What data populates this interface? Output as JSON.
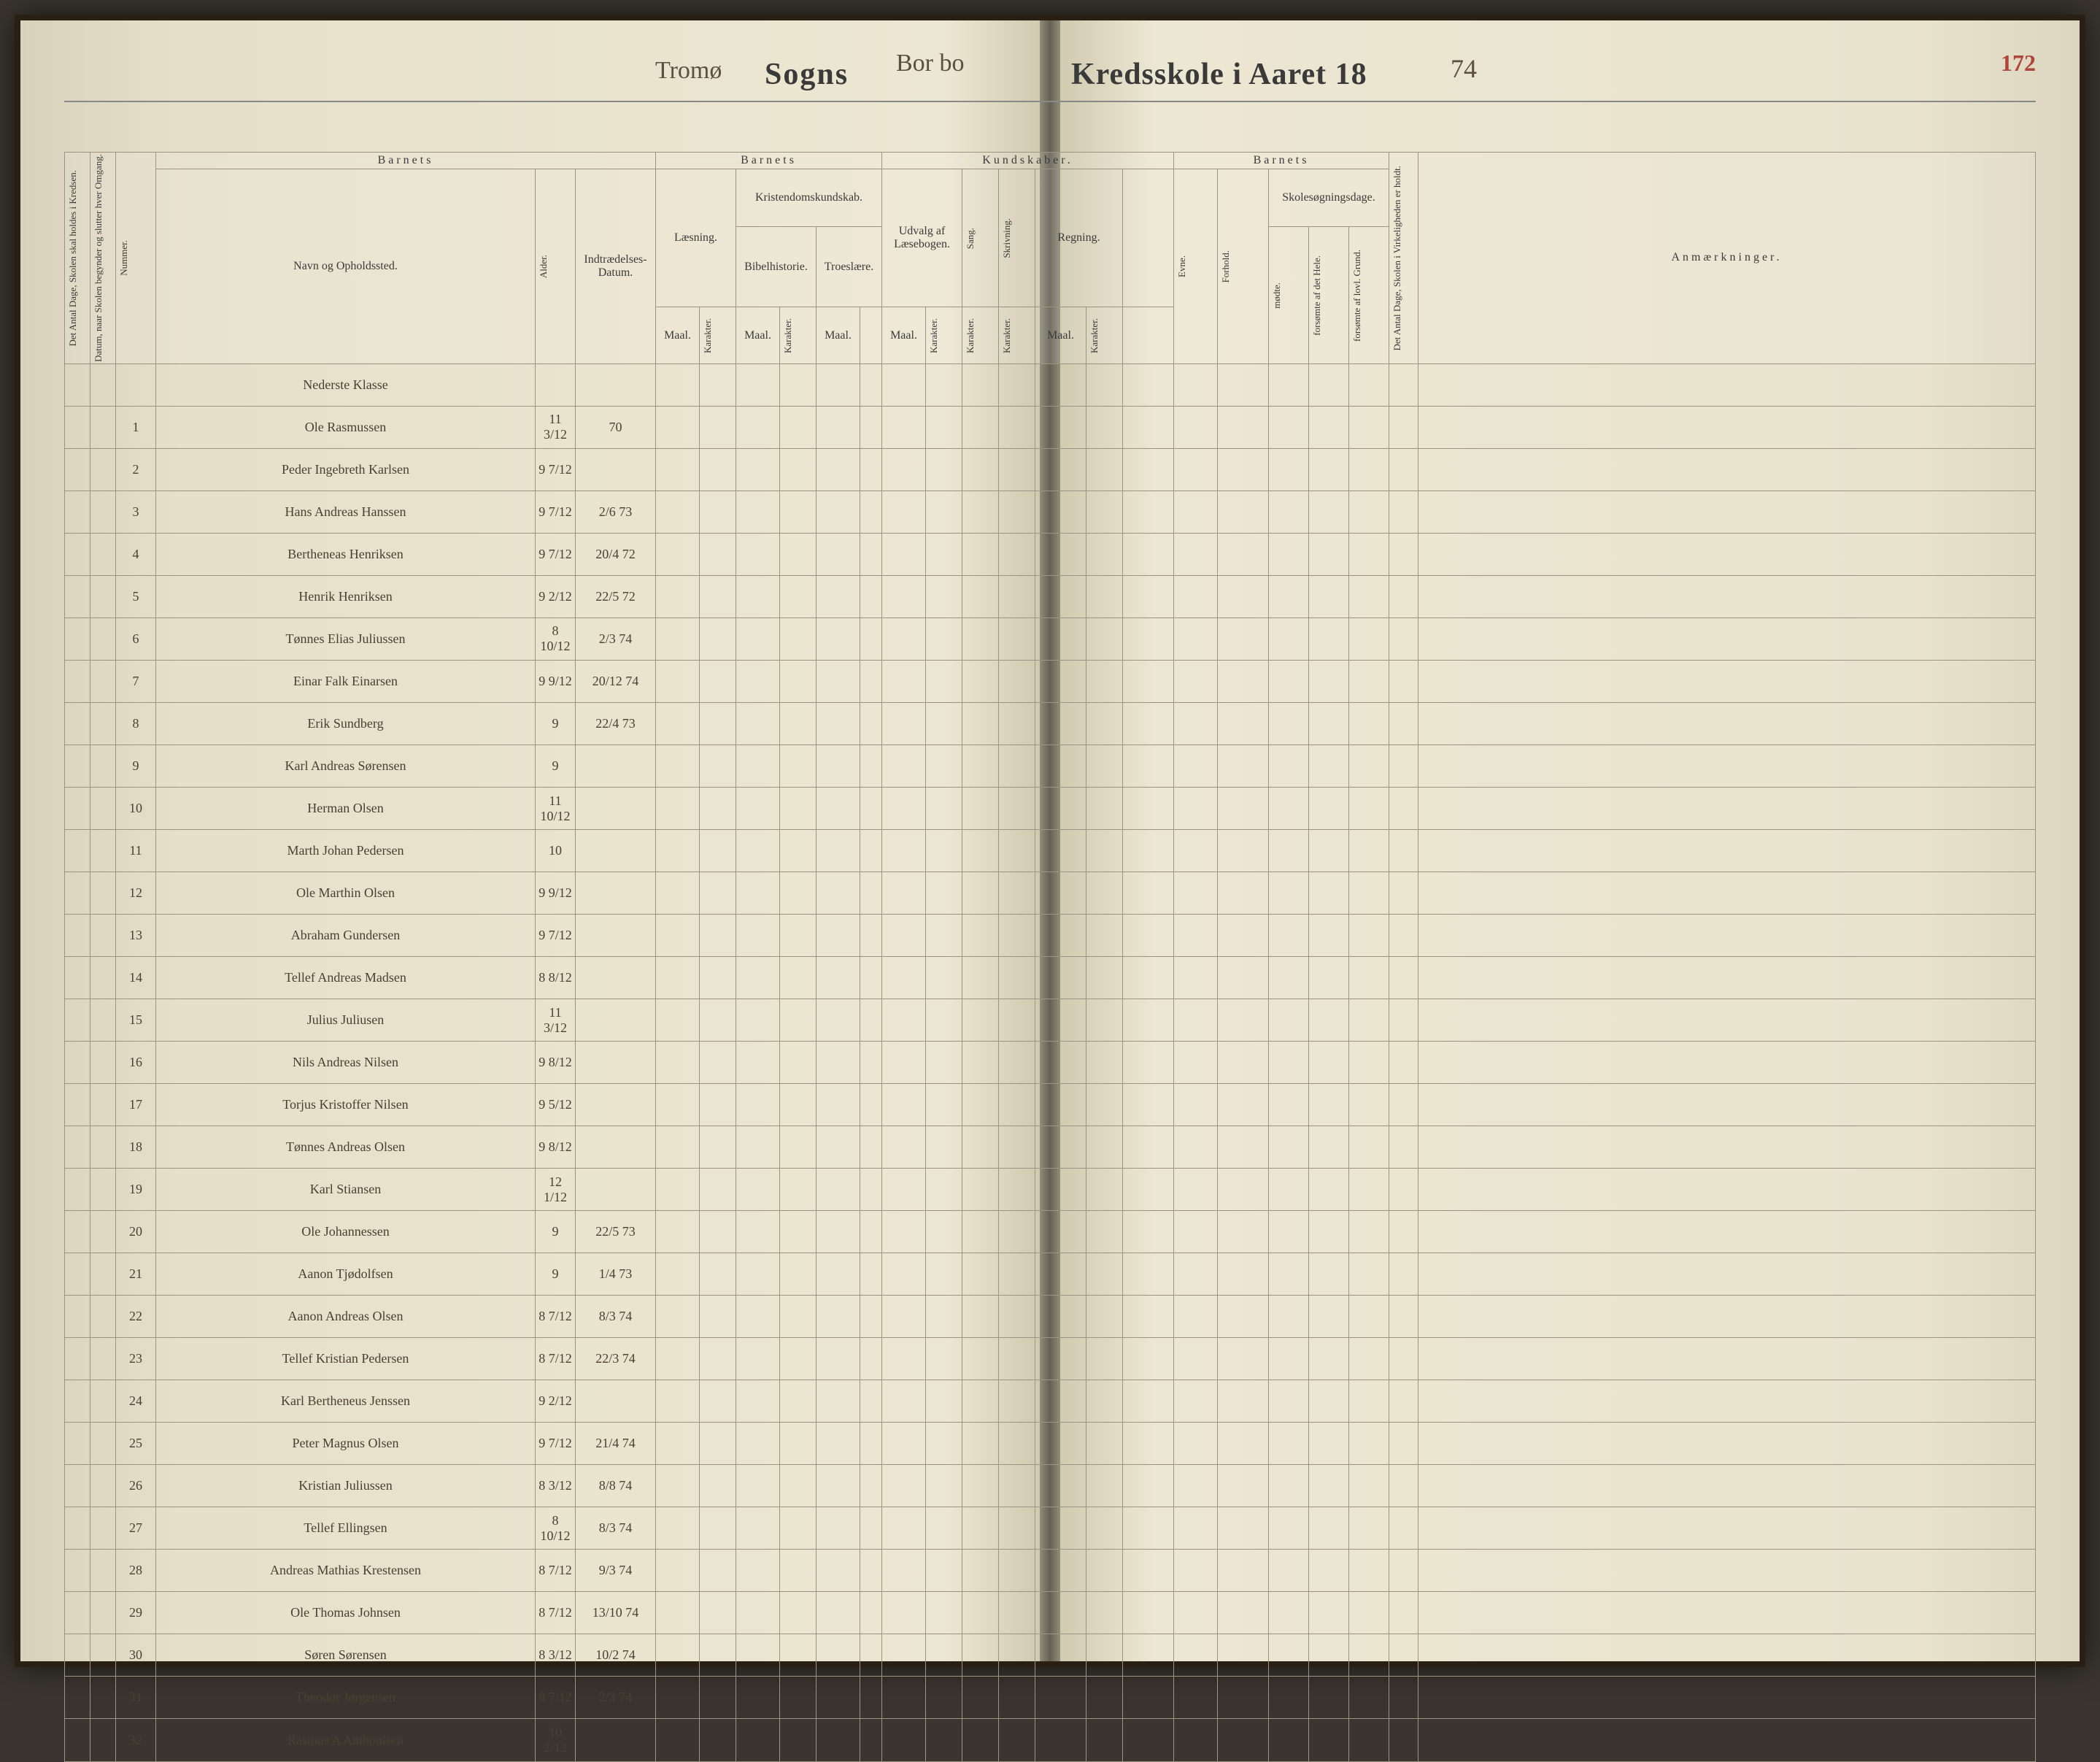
{
  "header": {
    "parish_script": "Tromø",
    "sogns": "Sogns",
    "district_script": "Bor bo",
    "kredsskole": "Kredsskole i Aaret 18",
    "year_suffix": "74",
    "page_number": "172"
  },
  "columns": {
    "c1": "Det Antal Dage, Skolen skal holdes i Kredsen.",
    "c2": "Datum, naar Skolen begynder og slutter hver Omgang.",
    "c3": "Nummer.",
    "barnets1": "Barnets",
    "navn": "Navn og Opholdssted.",
    "alder": "Alder.",
    "indtr": "Indtrædelses-Datum.",
    "barnets2": "Barnets",
    "laesning": "Læsning.",
    "kristendom": "Kristendomskundskab.",
    "bibel": "Bibelhistorie.",
    "troes": "Troeslære.",
    "maal": "Maal.",
    "karakter": "Karakter.",
    "kundskaber": "Kundskaber.",
    "udvalg": "Udvalg af Læsebogen.",
    "sang": "Sang.",
    "skriv": "Skrivning.",
    "regning": "Regning.",
    "barnets3": "Barnets",
    "evne": "Evne.",
    "forhold": "Forhold.",
    "skolesog": "Skolesøgningsdage.",
    "modte": "mødte.",
    "fors1": "forsømte af det Hele.",
    "fors2": "forsømte af lovl. Grund.",
    "antaldage": "Det Antal Dage, Skolen i Virkeligheden er holdt.",
    "anm": "Anmærkninger."
  },
  "class_label": "Nederste Klasse",
  "rows": [
    {
      "n": "1",
      "name": "Ole Rasmussen",
      "age": "11 3/12",
      "date": "70"
    },
    {
      "n": "2",
      "name": "Peder Ingebreth Karlsen",
      "age": "9 7/12",
      "date": ""
    },
    {
      "n": "3",
      "name": "Hans Andreas Hanssen",
      "age": "9 7/12",
      "date": "2/6 73"
    },
    {
      "n": "4",
      "name": "Bertheneas Henriksen",
      "age": "9 7/12",
      "date": "20/4 72"
    },
    {
      "n": "5",
      "name": "Henrik Henriksen",
      "age": "9 2/12",
      "date": "22/5 72"
    },
    {
      "n": "6",
      "name": "Tønnes Elias Juliussen",
      "age": "8 10/12",
      "date": "2/3 74"
    },
    {
      "n": "7",
      "name": "Einar Falk Einarsen",
      "age": "9 9/12",
      "date": "20/12 74"
    },
    {
      "n": "8",
      "name": "Erik Sundberg",
      "age": "9",
      "date": "22/4 73"
    },
    {
      "n": "9",
      "name": "Karl Andreas Sørensen",
      "age": "9",
      "date": ""
    },
    {
      "n": "10",
      "name": "Herman Olsen",
      "age": "11 10/12",
      "date": ""
    },
    {
      "n": "11",
      "name": "Marth Johan Pedersen",
      "age": "10",
      "date": ""
    },
    {
      "n": "12",
      "name": "Ole Marthin Olsen",
      "age": "9 9/12",
      "date": ""
    },
    {
      "n": "13",
      "name": "Abraham Gundersen",
      "age": "9 7/12",
      "date": ""
    },
    {
      "n": "14",
      "name": "Tellef Andreas Madsen",
      "age": "8 8/12",
      "date": ""
    },
    {
      "n": "15",
      "name": "Julius Juliusen",
      "age": "11 3/12",
      "date": ""
    },
    {
      "n": "16",
      "name": "Nils Andreas Nilsen",
      "age": "9 8/12",
      "date": ""
    },
    {
      "n": "17",
      "name": "Torjus Kristoffer Nilsen",
      "age": "9 5/12",
      "date": ""
    },
    {
      "n": "18",
      "name": "Tønnes Andreas Olsen",
      "age": "9 8/12",
      "date": ""
    },
    {
      "n": "19",
      "name": "Karl Stiansen",
      "age": "12 1/12",
      "date": ""
    },
    {
      "n": "20",
      "name": "Ole Johannessen",
      "age": "9",
      "date": "22/5 73"
    },
    {
      "n": "21",
      "name": "Aanon Tjødolfsen",
      "age": "9",
      "date": "1/4 73"
    },
    {
      "n": "22",
      "name": "Aanon Andreas Olsen",
      "age": "8 7/12",
      "date": "8/3 74"
    },
    {
      "n": "23",
      "name": "Tellef Kristian Pedersen",
      "age": "8 7/12",
      "date": "22/3 74"
    },
    {
      "n": "24",
      "name": "Karl Bertheneus Jenssen",
      "age": "9 2/12",
      "date": ""
    },
    {
      "n": "25",
      "name": "Peter Magnus Olsen",
      "age": "9 7/12",
      "date": "21/4 74"
    },
    {
      "n": "26",
      "name": "Kristian Juliussen",
      "age": "8 3/12",
      "date": "8/8 74"
    },
    {
      "n": "27",
      "name": "Tellef Ellingsen",
      "age": "8 10/12",
      "date": "8/3 74"
    },
    {
      "n": "28",
      "name": "Andreas Mathias Krestensen",
      "age": "8 7/12",
      "date": "9/3 74"
    },
    {
      "n": "29",
      "name": "Ole Thomas Johnsen",
      "age": "8 7/12",
      "date": "13/10 74"
    },
    {
      "n": "30",
      "name": "Søren Sørensen",
      "age": "8 3/12",
      "date": "10/2 74"
    },
    {
      "n": "31",
      "name": "Theodor Jørgensen",
      "age": "8 7/12",
      "date": "2/3 74"
    },
    {
      "n": "32",
      "name": "Rasmus A Anthonisen",
      "age": "10 2/12",
      "date": ""
    }
  ]
}
